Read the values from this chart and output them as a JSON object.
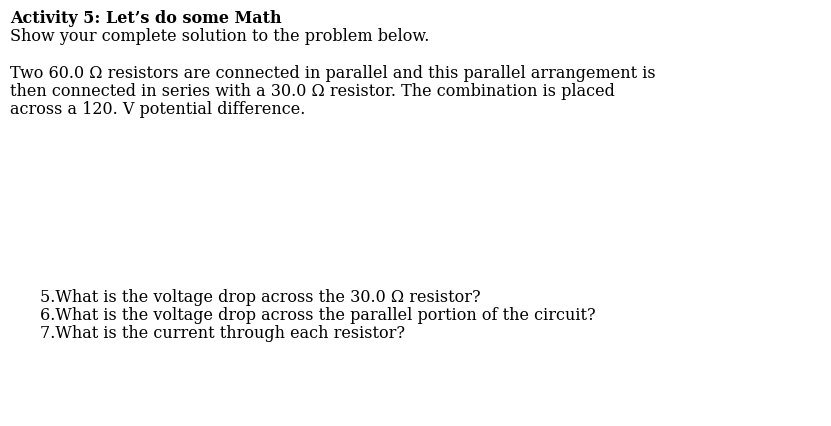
{
  "background_color": "#ffffff",
  "title_bold": "Activity 5: Let’s do some Math",
  "subtitle": "Show your complete solution to the problem below.",
  "para_line1": "Two 60.0 Ω resistors are connected in parallel and this parallel arrangement is",
  "para_line2": "then connected in series with a 30.0 Ω resistor. The combination is placed",
  "para_line3": "across a 120. V potential difference.",
  "questions": [
    "5.What is the voltage drop across the 30.0 Ω resistor?",
    "6.What is the voltage drop across the parallel portion of the circuit?",
    "7.What is the current through each resistor?"
  ],
  "font_family": "DejaVu Serif",
  "title_fontsize": 11.5,
  "body_fontsize": 11.5,
  "text_color": "#000000",
  "fig_width": 8.31,
  "fig_height": 4.27,
  "dpi": 100
}
